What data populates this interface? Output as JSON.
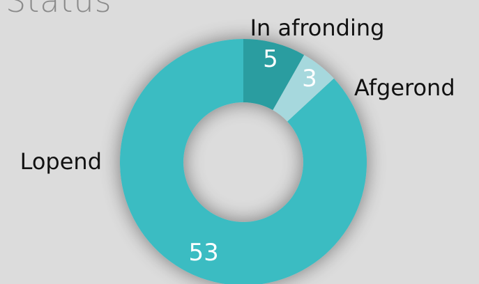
{
  "title": "Status",
  "chart_data": {
    "type": "pie",
    "style": "donut",
    "title": "Status",
    "categories": [
      "In afronding",
      "Afgerond",
      "Lopend"
    ],
    "values": [
      5,
      3,
      53
    ],
    "colors": [
      "#2a9da0",
      "#a6d8dd",
      "#3bbcc2"
    ],
    "data_labels": true,
    "legend": "none"
  }
}
